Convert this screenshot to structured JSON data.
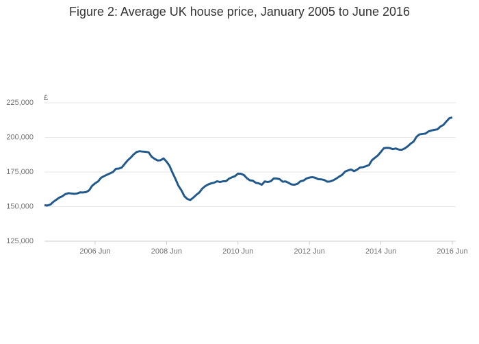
{
  "chart_data": {
    "type": "line",
    "title": "Figure 2: Average UK house price, January 2005 to June 2016",
    "y_label": "£",
    "color": "#22598c",
    "grid": true,
    "x": [
      "2005-01",
      "2005-02",
      "2005-03",
      "2005-04",
      "2005-05",
      "2005-06",
      "2005-07",
      "2005-08",
      "2005-09",
      "2005-10",
      "2005-11",
      "2005-12",
      "2006-01",
      "2006-02",
      "2006-03",
      "2006-04",
      "2006-05",
      "2006-06",
      "2006-07",
      "2006-08",
      "2006-09",
      "2006-10",
      "2006-11",
      "2006-12",
      "2007-01",
      "2007-02",
      "2007-03",
      "2007-04",
      "2007-05",
      "2007-06",
      "2007-07",
      "2007-08",
      "2007-09",
      "2007-10",
      "2007-11",
      "2007-12",
      "2008-01",
      "2008-02",
      "2008-03",
      "2008-04",
      "2008-05",
      "2008-06",
      "2008-07",
      "2008-08",
      "2008-09",
      "2008-10",
      "2008-11",
      "2008-12",
      "2009-01",
      "2009-02",
      "2009-03",
      "2009-04",
      "2009-05",
      "2009-06",
      "2009-07",
      "2009-08",
      "2009-09",
      "2009-10",
      "2009-11",
      "2009-12",
      "2010-01",
      "2010-02",
      "2010-03",
      "2010-04",
      "2010-05",
      "2010-06",
      "2010-07",
      "2010-08",
      "2010-09",
      "2010-10",
      "2010-11",
      "2010-12",
      "2011-01",
      "2011-02",
      "2011-03",
      "2011-04",
      "2011-05",
      "2011-06",
      "2011-07",
      "2011-08",
      "2011-09",
      "2011-10",
      "2011-11",
      "2011-12",
      "2012-01",
      "2012-02",
      "2012-03",
      "2012-04",
      "2012-05",
      "2012-06",
      "2012-07",
      "2012-08",
      "2012-09",
      "2012-10",
      "2012-11",
      "2012-12",
      "2013-01",
      "2013-02",
      "2013-03",
      "2013-04",
      "2013-05",
      "2013-06",
      "2013-07",
      "2013-08",
      "2013-09",
      "2013-10",
      "2013-11",
      "2013-12",
      "2014-01",
      "2014-02",
      "2014-03",
      "2014-04",
      "2014-05",
      "2014-06",
      "2014-07",
      "2014-08",
      "2014-09",
      "2014-10",
      "2014-11",
      "2014-12",
      "2015-01",
      "2015-02",
      "2015-03",
      "2015-04",
      "2015-05",
      "2015-06",
      "2015-07",
      "2015-08",
      "2015-09",
      "2015-10",
      "2015-11",
      "2015-12",
      "2016-01",
      "2016-02",
      "2016-03",
      "2016-04",
      "2016-05",
      "2016-06"
    ],
    "values": [
      151000,
      150800,
      151500,
      153500,
      155000,
      156500,
      157500,
      159000,
      159700,
      159500,
      159200,
      159500,
      160300,
      160200,
      160500,
      161800,
      165000,
      166800,
      168200,
      170800,
      172000,
      173000,
      174000,
      175000,
      177300,
      177500,
      178300,
      181000,
      183500,
      185500,
      187800,
      189500,
      190000,
      189700,
      189600,
      189200,
      186000,
      184500,
      183300,
      183500,
      184800,
      182500,
      179500,
      174500,
      170000,
      165000,
      161800,
      157500,
      155500,
      154800,
      156500,
      158500,
      160200,
      163000,
      164800,
      166000,
      166800,
      167300,
      168300,
      167800,
      168300,
      168400,
      170200,
      171200,
      172000,
      173800,
      173700,
      172800,
      170500,
      169000,
      168700,
      167200,
      166800,
      165800,
      168200,
      167800,
      168300,
      170300,
      170300,
      169800,
      168000,
      168200,
      167200,
      166000,
      165800,
      166500,
      168300,
      168800,
      170300,
      171000,
      171300,
      170800,
      169800,
      169700,
      169200,
      168000,
      168200,
      169000,
      170200,
      171700,
      173000,
      175300,
      176200,
      176800,
      175600,
      176700,
      178200,
      178500,
      179200,
      180000,
      183500,
      185300,
      187000,
      189500,
      192200,
      192500,
      192300,
      191500,
      192000,
      191200,
      191000,
      192000,
      193500,
      195500,
      197000,
      200500,
      202200,
      202500,
      202800,
      204300,
      205000,
      205500,
      205800,
      207800,
      209000,
      211500,
      213800,
      214500
    ],
    "xlim": [
      "2005-01",
      "2016-06"
    ],
    "xticks": [
      {
        "value": "2006-06",
        "label": "2006 Jun"
      },
      {
        "value": "2008-06",
        "label": "2008 Jun"
      },
      {
        "value": "2010-06",
        "label": "2010 Jun"
      },
      {
        "value": "2012-06",
        "label": "2012 Jun"
      },
      {
        "value": "2014-06",
        "label": "2014 Jun"
      },
      {
        "value": "2016-06",
        "label": "2016 Jun"
      }
    ],
    "ylim": [
      125000,
      225000
    ],
    "yticks": [
      {
        "value": 125000,
        "label": "125,000"
      },
      {
        "value": 150000,
        "label": "150,000"
      },
      {
        "value": 175000,
        "label": "175,000"
      },
      {
        "value": 200000,
        "label": "200,000"
      },
      {
        "value": 225000,
        "label": "225,000"
      }
    ]
  }
}
